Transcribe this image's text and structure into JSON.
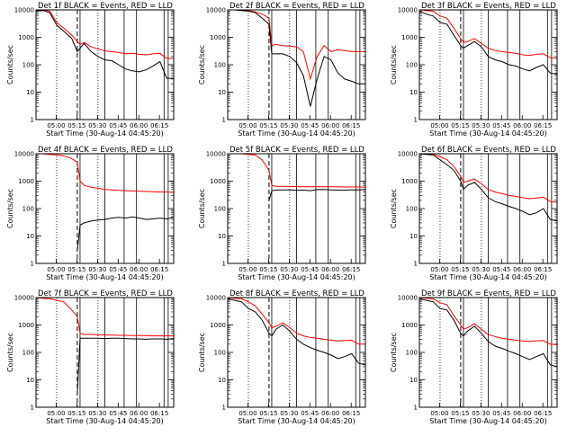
{
  "colors": {
    "events": "#000000",
    "lld": "#ff0000",
    "axes": "#000000",
    "background": "#ffffff"
  },
  "common": {
    "x_ticks": [
      "05:00",
      "05:15",
      "05:30",
      "05:45",
      "06:00",
      "06:15"
    ],
    "y_ticks": [
      "1",
      "10",
      "100",
      "1000",
      "10000"
    ],
    "xlabel": "Start Time (30-Aug-14 04:45:20)",
    "ylabel": "Counts/sec",
    "y_scale": "log",
    "ylim": [
      1,
      10000
    ],
    "xlim_minutes": [
      0,
      100
    ],
    "markers": {
      "dotted": [
        15,
        45
      ],
      "dashed": [
        30
      ],
      "solid": [
        32,
        50,
        64,
        73,
        93,
        96
      ]
    }
  },
  "chart_data": [
    {
      "type": "line",
      "title": "Det 1f BLACK = Events, RED = LLD",
      "series": [
        {
          "name": "BLACK = Events",
          "x": [
            0,
            5,
            10,
            15,
            20,
            26,
            30,
            32,
            35,
            40,
            45,
            50,
            55,
            60,
            65,
            70,
            75,
            80,
            85,
            90,
            95,
            100
          ],
          "y": [
            9000,
            9500,
            8000,
            2800,
            1700,
            900,
            300,
            400,
            600,
            300,
            200,
            150,
            140,
            100,
            70,
            60,
            55,
            65,
            90,
            130,
            32,
            32
          ]
        },
        {
          "name": "RED = LLD",
          "x": [
            0,
            5,
            10,
            15,
            20,
            26,
            30,
            32,
            35,
            40,
            45,
            50,
            55,
            60,
            65,
            70,
            75,
            80,
            85,
            90,
            95,
            100
          ],
          "y": [
            9500,
            10000,
            9000,
            3500,
            2200,
            1200,
            700,
            550,
            650,
            450,
            380,
            320,
            300,
            280,
            250,
            260,
            240,
            230,
            250,
            260,
            170,
            170
          ]
        }
      ]
    },
    {
      "type": "line",
      "title": "Det 2f BLACK = Events, RED = LLD",
      "series": [
        {
          "name": "BLACK = Events",
          "x": [
            0,
            5,
            10,
            15,
            20,
            25,
            30,
            32,
            35,
            40,
            45,
            50,
            55,
            60,
            65,
            70,
            75,
            80,
            85,
            90,
            95,
            100
          ],
          "y": [
            10000,
            10000,
            9500,
            9000,
            8000,
            5000,
            3000,
            250,
            250,
            250,
            200,
            120,
            40,
            3,
            30,
            200,
            150,
            50,
            30,
            25,
            20,
            20
          ]
        },
        {
          "name": "RED = LLD",
          "x": [
            0,
            5,
            10,
            15,
            20,
            25,
            30,
            32,
            35,
            40,
            45,
            50,
            55,
            60,
            65,
            70,
            75,
            80,
            85,
            90,
            95,
            100
          ],
          "y": [
            10000,
            10000,
            10000,
            9500,
            8500,
            7000,
            5000,
            500,
            550,
            500,
            480,
            450,
            300,
            30,
            200,
            500,
            300,
            350,
            330,
            300,
            300,
            300
          ]
        }
      ]
    },
    {
      "type": "line",
      "title": "Det 3f BLACK = Events, RED = LLD",
      "series": [
        {
          "name": "BLACK = Events",
          "x": [
            0,
            5,
            10,
            15,
            20,
            26,
            30,
            32,
            35,
            40,
            45,
            50,
            55,
            60,
            65,
            70,
            75,
            80,
            85,
            90,
            95,
            100
          ],
          "y": [
            9000,
            7000,
            6000,
            3500,
            3000,
            1000,
            500,
            400,
            500,
            700,
            450,
            200,
            150,
            130,
            100,
            90,
            70,
            60,
            80,
            100,
            50,
            45
          ]
        },
        {
          "name": "RED = LLD",
          "x": [
            0,
            5,
            10,
            15,
            20,
            26,
            30,
            32,
            35,
            40,
            45,
            50,
            55,
            60,
            65,
            70,
            75,
            80,
            85,
            90,
            95,
            100
          ],
          "y": [
            10000,
            9500,
            9000,
            6000,
            5000,
            1800,
            900,
            650,
            700,
            900,
            600,
            400,
            330,
            300,
            280,
            260,
            230,
            220,
            240,
            250,
            180,
            170
          ]
        }
      ]
    },
    {
      "type": "line",
      "title": "Det 4f BLACK = Events, RED = LLD",
      "series": [
        {
          "name": "BLACK = Events",
          "x": [
            30,
            32,
            35,
            40,
            45,
            50,
            55,
            60,
            65,
            70,
            75,
            80,
            85,
            90,
            95,
            100
          ],
          "y": [
            3,
            25,
            30,
            35,
            38,
            40,
            45,
            48,
            45,
            50,
            45,
            40,
            42,
            45,
            42,
            48
          ]
        },
        {
          "name": "RED = LLD",
          "x": [
            0,
            5,
            10,
            15,
            20,
            25,
            30,
            32,
            35,
            40,
            45,
            50,
            55,
            60,
            65,
            70,
            75,
            80,
            85,
            90,
            95,
            100
          ],
          "y": [
            10000,
            10000,
            9500,
            9000,
            8500,
            7000,
            5000,
            1000,
            700,
            600,
            550,
            500,
            480,
            460,
            450,
            440,
            430,
            420,
            410,
            400,
            400,
            390
          ]
        }
      ]
    },
    {
      "type": "line",
      "title": "Det 5f BLACK = Events, RED = LLD",
      "series": [
        {
          "name": "BLACK = Events",
          "x": [
            30,
            32,
            35,
            40,
            45,
            50,
            55,
            60,
            65,
            70,
            75,
            80,
            85,
            90,
            95,
            100
          ],
          "y": [
            200,
            450,
            470,
            480,
            480,
            460,
            470,
            450,
            490,
            500,
            480,
            470,
            470,
            480,
            480,
            490
          ]
        },
        {
          "name": "RED = LLD",
          "x": [
            0,
            5,
            10,
            15,
            20,
            25,
            30,
            32,
            35,
            40,
            45,
            50,
            55,
            60,
            65,
            70,
            75,
            80,
            85,
            90,
            95,
            100
          ],
          "y": [
            10000,
            10000,
            10000,
            9500,
            9000,
            6000,
            2500,
            700,
            650,
            650,
            640,
            630,
            630,
            620,
            620,
            620,
            620,
            620,
            610,
            610,
            610,
            600
          ]
        }
      ]
    },
    {
      "type": "line",
      "title": "Det 6f BLACK = Events, RED = LLD",
      "series": [
        {
          "name": "BLACK = Events",
          "x": [
            0,
            5,
            10,
            15,
            20,
            25,
            30,
            32,
            35,
            40,
            45,
            50,
            55,
            60,
            65,
            70,
            75,
            80,
            85,
            90,
            95,
            100
          ],
          "y": [
            10000,
            9500,
            9000,
            6000,
            4000,
            2500,
            1000,
            500,
            700,
            900,
            500,
            250,
            180,
            150,
            120,
            100,
            80,
            60,
            70,
            100,
            40,
            35
          ]
        },
        {
          "name": "RED = LLD",
          "x": [
            0,
            5,
            10,
            15,
            20,
            25,
            30,
            32,
            35,
            40,
            45,
            50,
            55,
            60,
            65,
            70,
            75,
            80,
            85,
            90,
            95,
            100
          ],
          "y": [
            10000,
            10000,
            9500,
            8000,
            6000,
            3500,
            1500,
            900,
            1000,
            1200,
            800,
            500,
            400,
            350,
            300,
            280,
            250,
            230,
            240,
            260,
            180,
            170
          ]
        }
      ]
    },
    {
      "type": "line",
      "title": "Det 7f BLACK = Events, RED = LLD",
      "series": [
        {
          "name": "BLACK = Events",
          "x": [
            30,
            32,
            35,
            40,
            45,
            50,
            55,
            60,
            65,
            70,
            75,
            80,
            85,
            90,
            95,
            100
          ],
          "y": [
            3,
            330,
            330,
            330,
            330,
            320,
            330,
            330,
            320,
            310,
            310,
            300,
            310,
            310,
            300,
            320
          ]
        },
        {
          "name": "RED = LLD",
          "x": [
            0,
            5,
            10,
            15,
            20,
            25,
            30,
            32,
            35,
            40,
            45,
            50,
            55,
            60,
            65,
            70,
            75,
            80,
            85,
            90,
            95,
            100
          ],
          "y": [
            10000,
            9500,
            9000,
            8000,
            7000,
            4000,
            2000,
            500,
            450,
            450,
            440,
            430,
            430,
            420,
            420,
            410,
            410,
            410,
            400,
            400,
            400,
            400
          ]
        }
      ]
    },
    {
      "type": "line",
      "title": "Det 8f BLACK = Events, RED = LLD",
      "series": [
        {
          "name": "BLACK = Events",
          "x": [
            0,
            5,
            10,
            15,
            20,
            25,
            30,
            32,
            35,
            40,
            45,
            50,
            55,
            60,
            65,
            70,
            75,
            80,
            85,
            90,
            95,
            100
          ],
          "y": [
            9000,
            8000,
            7000,
            4000,
            3000,
            1500,
            500,
            400,
            700,
            1000,
            600,
            300,
            200,
            150,
            120,
            100,
            80,
            60,
            70,
            90,
            40,
            35
          ]
        },
        {
          "name": "RED = LLD",
          "x": [
            0,
            5,
            10,
            15,
            20,
            25,
            30,
            32,
            35,
            40,
            45,
            50,
            55,
            60,
            65,
            70,
            75,
            80,
            85,
            90,
            95,
            100
          ],
          "y": [
            10000,
            9500,
            9000,
            7000,
            5000,
            2500,
            1200,
            800,
            900,
            1200,
            800,
            500,
            400,
            350,
            330,
            300,
            280,
            260,
            270,
            280,
            200,
            200
          ]
        }
      ]
    },
    {
      "type": "line",
      "title": "Det 9f BLACK = Events, RED = LLD",
      "series": [
        {
          "name": "BLACK = Events",
          "x": [
            0,
            5,
            10,
            15,
            20,
            25,
            30,
            32,
            35,
            40,
            45,
            50,
            55,
            60,
            65,
            70,
            75,
            80,
            85,
            90,
            95,
            100
          ],
          "y": [
            9000,
            8000,
            7000,
            4000,
            3500,
            1500,
            500,
            400,
            600,
            900,
            500,
            250,
            170,
            140,
            110,
            90,
            70,
            55,
            70,
            90,
            35,
            30
          ]
        },
        {
          "name": "RED = LLD",
          "x": [
            0,
            5,
            10,
            15,
            20,
            25,
            30,
            32,
            35,
            40,
            45,
            50,
            55,
            60,
            65,
            70,
            75,
            80,
            85,
            90,
            95,
            100
          ],
          "y": [
            10000,
            9500,
            9000,
            6500,
            5500,
            2200,
            1000,
            700,
            800,
            1100,
            700,
            450,
            380,
            330,
            300,
            280,
            260,
            250,
            260,
            270,
            200,
            190
          ]
        }
      ]
    }
  ]
}
